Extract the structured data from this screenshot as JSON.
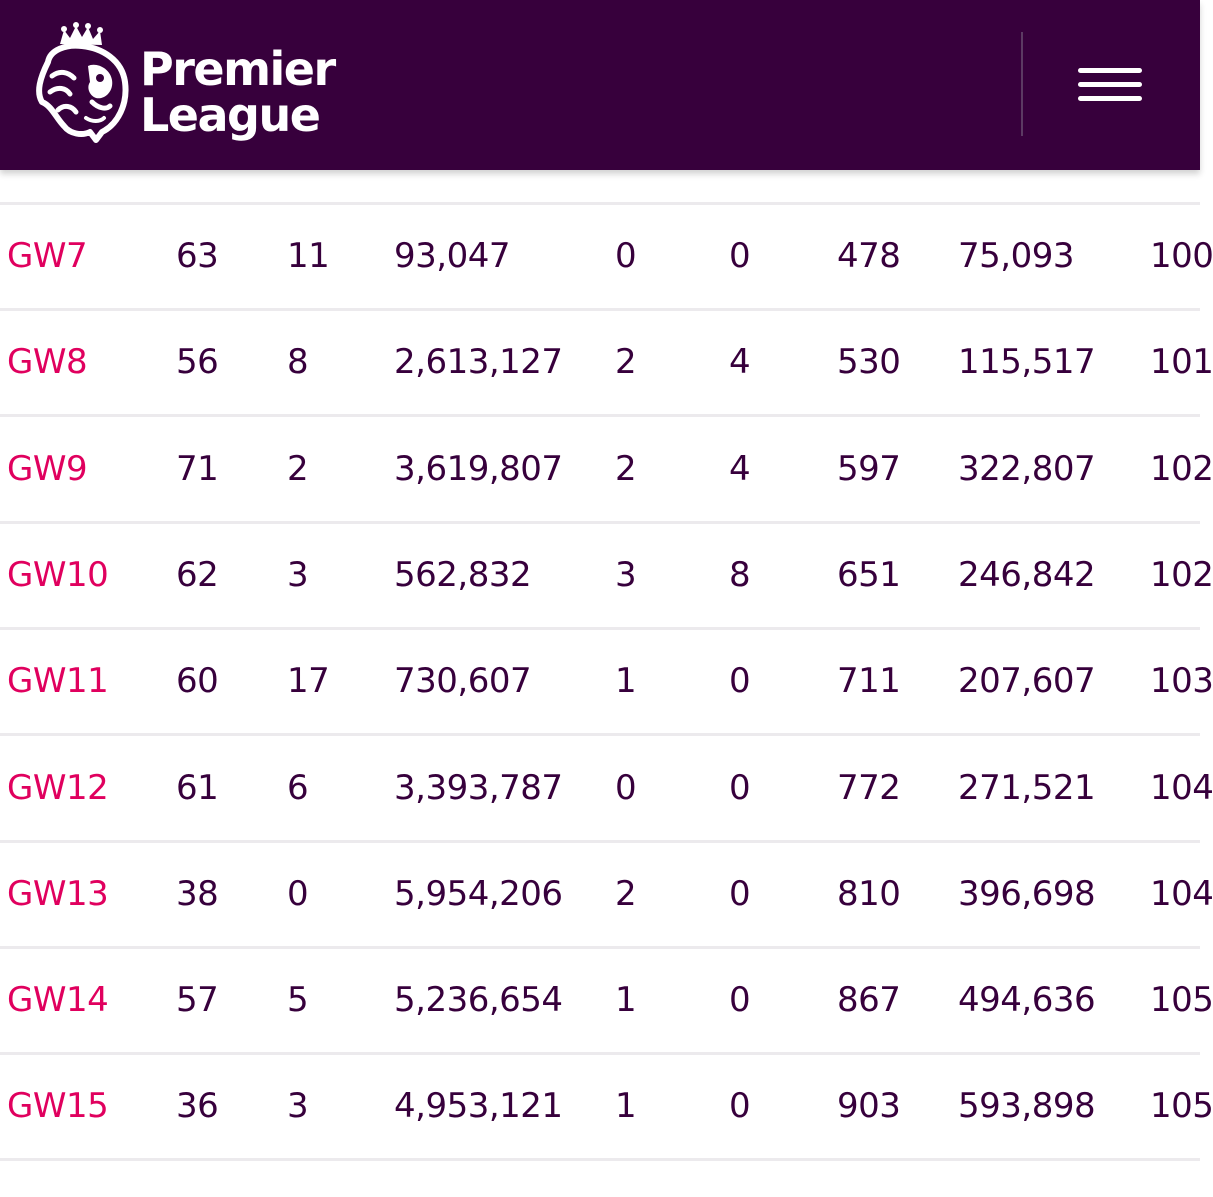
{
  "header": {
    "logo_line1": "Premier",
    "logo_line2": "League",
    "menu_icon": "hamburger-menu-icon",
    "background_color": "#37003c"
  },
  "table": {
    "link_color": "#e0005e",
    "text_color": "#37003c",
    "rows": [
      {
        "gw": "GW7",
        "c1": "63",
        "c2": "11",
        "c3": "93,047",
        "c4": "0",
        "c5": "0",
        "c6": "478",
        "c7": "75,093",
        "c8": "100"
      },
      {
        "gw": "GW8",
        "c1": "56",
        "c2": "8",
        "c3": "2,613,127",
        "c4": "2",
        "c5": "4",
        "c6": "530",
        "c7": "115,517",
        "c8": "101"
      },
      {
        "gw": "GW9",
        "c1": "71",
        "c2": "2",
        "c3": "3,619,807",
        "c4": "2",
        "c5": "4",
        "c6": "597",
        "c7": "322,807",
        "c8": "102"
      },
      {
        "gw": "GW10",
        "c1": "62",
        "c2": "3",
        "c3": "562,832",
        "c4": "3",
        "c5": "8",
        "c6": "651",
        "c7": "246,842",
        "c8": "102"
      },
      {
        "gw": "GW11",
        "c1": "60",
        "c2": "17",
        "c3": "730,607",
        "c4": "1",
        "c5": "0",
        "c6": "711",
        "c7": "207,607",
        "c8": "103"
      },
      {
        "gw": "GW12",
        "c1": "61",
        "c2": "6",
        "c3": "3,393,787",
        "c4": "0",
        "c5": "0",
        "c6": "772",
        "c7": "271,521",
        "c8": "104"
      },
      {
        "gw": "GW13",
        "c1": "38",
        "c2": "0",
        "c3": "5,954,206",
        "c4": "2",
        "c5": "0",
        "c6": "810",
        "c7": "396,698",
        "c8": "104"
      },
      {
        "gw": "GW14",
        "c1": "57",
        "c2": "5",
        "c3": "5,236,654",
        "c4": "1",
        "c5": "0",
        "c6": "867",
        "c7": "494,636",
        "c8": "105"
      },
      {
        "gw": "GW15",
        "c1": "36",
        "c2": "3",
        "c3": "4,953,121",
        "c4": "1",
        "c5": "0",
        "c6": "903",
        "c7": "593,898",
        "c8": "105"
      }
    ]
  }
}
